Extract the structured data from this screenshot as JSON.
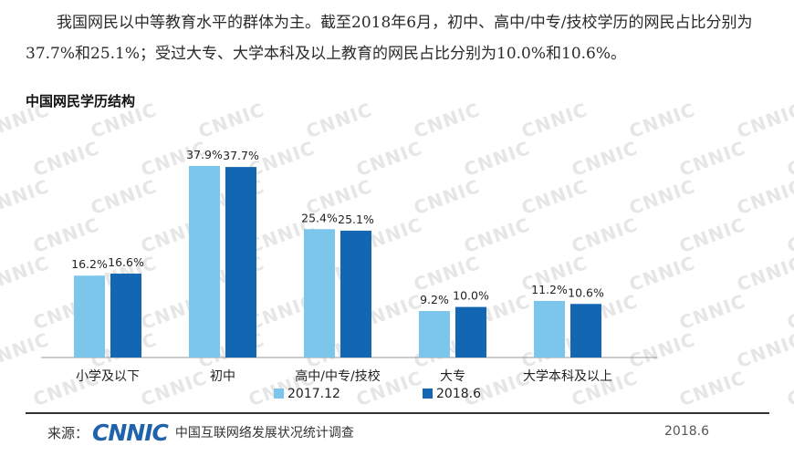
{
  "paragraph": "我国网民以中等教育水平的群体为主。截至2018年6月，初中、高中/中专/技校学历的网民占比分别为37.7%和25.1%；受过大专、大学本科及以上教育的网民占比分别为10.0%和10.6%。",
  "watermark_text": "CNNIC",
  "footer": {
    "source_label": "来源：",
    "logo_text": "CNNIC",
    "org_name": "中国互联网络发展状况统计调查",
    "date": "2018.6"
  },
  "colors": {
    "series_2017": "#7cc6ec",
    "series_2018": "#1366b1",
    "logo": "#1f63ad"
  },
  "chart_data": {
    "type": "bar",
    "title": "中国网民学历结构",
    "categories": [
      "小学及以下",
      "初中",
      "高中/中专/技校",
      "大专",
      "大学本科及以上"
    ],
    "series": [
      {
        "name": "2017.12",
        "values": [
          16.2,
          37.9,
          25.4,
          9.2,
          11.2
        ],
        "labels": [
          "16.2%",
          "37.9%",
          "25.4%",
          "9.2%",
          "11.2%"
        ]
      },
      {
        "name": "2018.6",
        "values": [
          16.6,
          37.7,
          25.1,
          10.0,
          10.6
        ],
        "labels": [
          "16.6%",
          "37.7%",
          "25.1%",
          "10.0%",
          "10.6%"
        ]
      }
    ],
    "unit": "%",
    "ylim": [
      0,
      40
    ],
    "grid": false,
    "legend": "bottom-center",
    "xlabel": "",
    "ylabel": ""
  }
}
